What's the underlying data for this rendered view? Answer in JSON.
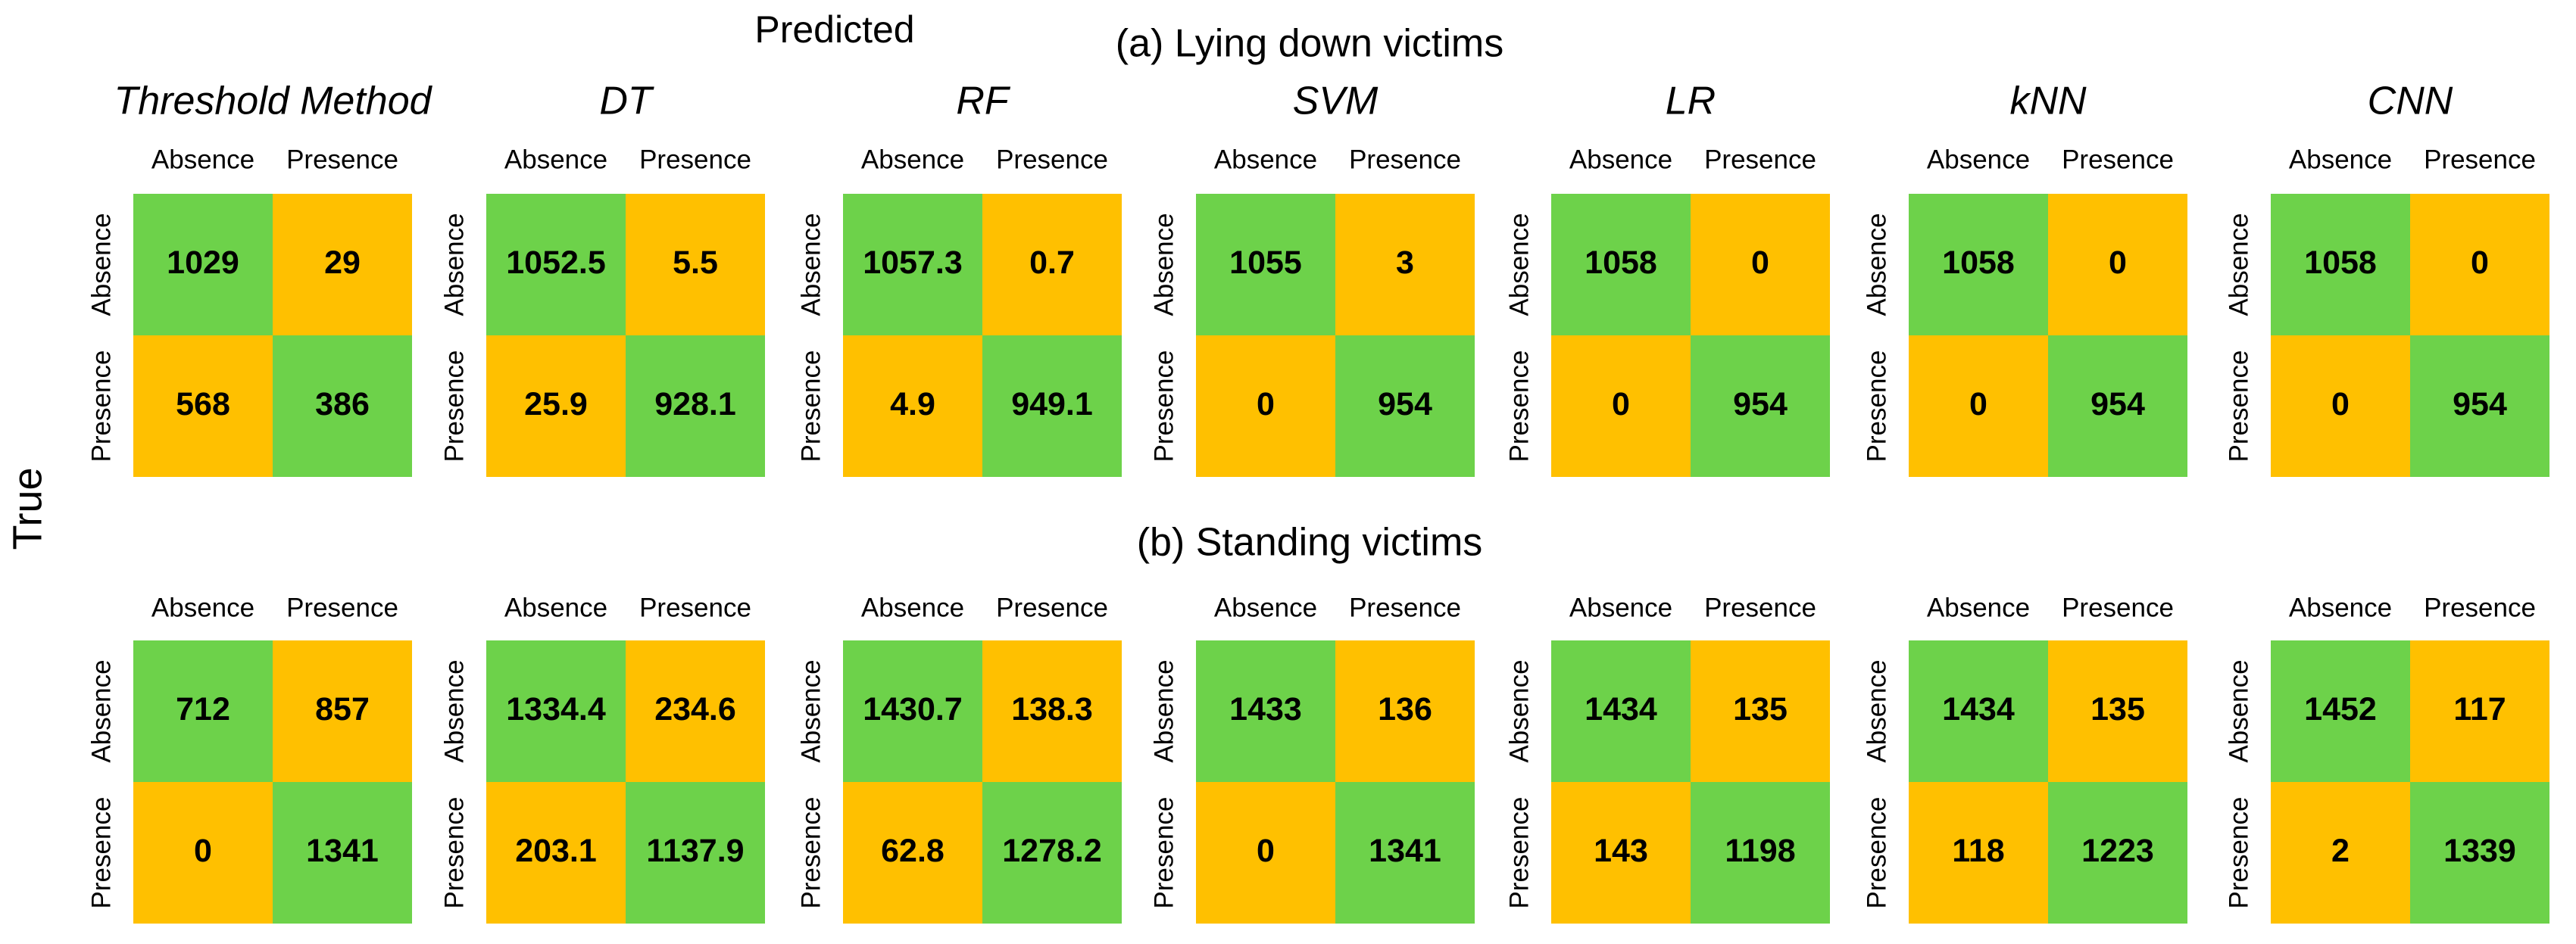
{
  "predicted_label": "Predicted",
  "true_label": "True",
  "classes": [
    "Absence",
    "Presence"
  ],
  "colors": {
    "correct": "#6dd24a",
    "error": "#ffc000"
  },
  "panels": [
    {
      "title": "(a) Lying down victims",
      "matrices": [
        {
          "method": "Threshold Method",
          "cells": [
            [
              1029,
              29
            ],
            [
              568,
              386
            ]
          ]
        },
        {
          "method": "DT",
          "cells": [
            [
              1052.5,
              5.5
            ],
            [
              25.9,
              928.1
            ]
          ]
        },
        {
          "method": "RF",
          "cells": [
            [
              1057.3,
              0.7
            ],
            [
              4.9,
              949.1
            ]
          ]
        },
        {
          "method": "SVM",
          "cells": [
            [
              1055,
              3
            ],
            [
              0,
              954
            ]
          ]
        },
        {
          "method": "LR",
          "cells": [
            [
              1058,
              0
            ],
            [
              0,
              954
            ]
          ]
        },
        {
          "method": "kNN",
          "cells": [
            [
              1058,
              0
            ],
            [
              0,
              954
            ]
          ]
        },
        {
          "method": "CNN",
          "cells": [
            [
              1058,
              0
            ],
            [
              0,
              954
            ]
          ]
        }
      ]
    },
    {
      "title": "(b) Standing victims",
      "matrices": [
        {
          "method": "Threshold Method",
          "cells": [
            [
              712,
              857
            ],
            [
              0,
              1341
            ]
          ]
        },
        {
          "method": "DT",
          "cells": [
            [
              1334.4,
              234.6
            ],
            [
              203.1,
              1137.9
            ]
          ]
        },
        {
          "method": "RF",
          "cells": [
            [
              1430.7,
              138.3
            ],
            [
              62.8,
              1278.2
            ]
          ]
        },
        {
          "method": "SVM",
          "cells": [
            [
              1433,
              136
            ],
            [
              0,
              1341
            ]
          ]
        },
        {
          "method": "LR",
          "cells": [
            [
              1434,
              135
            ],
            [
              143,
              1198
            ]
          ]
        },
        {
          "method": "kNN",
          "cells": [
            [
              1434,
              135
            ],
            [
              118,
              1223
            ]
          ]
        },
        {
          "method": "CNN",
          "cells": [
            [
              1452,
              117
            ],
            [
              2,
              1339
            ]
          ]
        }
      ]
    }
  ]
}
